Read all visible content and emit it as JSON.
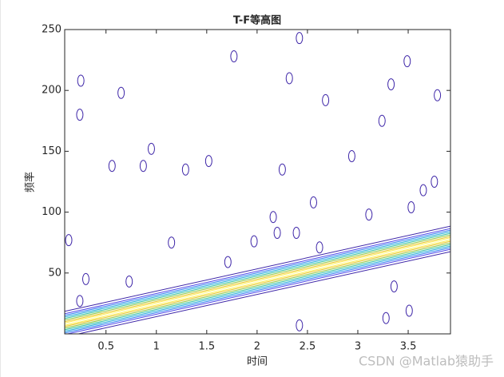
{
  "chart_data": {
    "type": "contour",
    "title": "T-F等高图",
    "x_label": "时间",
    "y_label": "频率",
    "xlim": [
      0.09,
      3.92
    ],
    "ylim": [
      0,
      250
    ],
    "xticks": [
      0.5,
      1,
      1.5,
      2,
      2.5,
      3,
      3.5
    ],
    "yticks": [
      50,
      100,
      150,
      200,
      250
    ],
    "ridge": {
      "x": [
        0.09,
        3.92
      ],
      "values": [
        8,
        78
      ]
    },
    "islands": {
      "x": [
        0.25,
        0.65,
        0.24,
        0.56,
        0.87,
        0.95,
        1.29,
        1.52,
        1.77,
        2.42,
        2.32,
        2.68,
        3.24,
        3.33,
        3.49,
        3.79,
        2.25,
        2.94,
        2.16,
        2.56,
        3.11,
        3.53,
        3.65,
        3.76,
        0.13,
        0.3,
        0.73,
        1.15,
        1.71,
        1.97,
        2.2,
        2.39,
        2.62,
        3.36,
        3.28,
        2.42,
        0.24,
        3.51
      ],
      "values": [
        208,
        198,
        180,
        138,
        138,
        152,
        135,
        142,
        228,
        243,
        210,
        192,
        175,
        205,
        224,
        196,
        135,
        146,
        96,
        108,
        98,
        104,
        118,
        125,
        77,
        45,
        43,
        75,
        59,
        76,
        83,
        83,
        71,
        39,
        13,
        7,
        27,
        19
      ]
    },
    "watermark": "CSDN @Matlab猿助手"
  }
}
